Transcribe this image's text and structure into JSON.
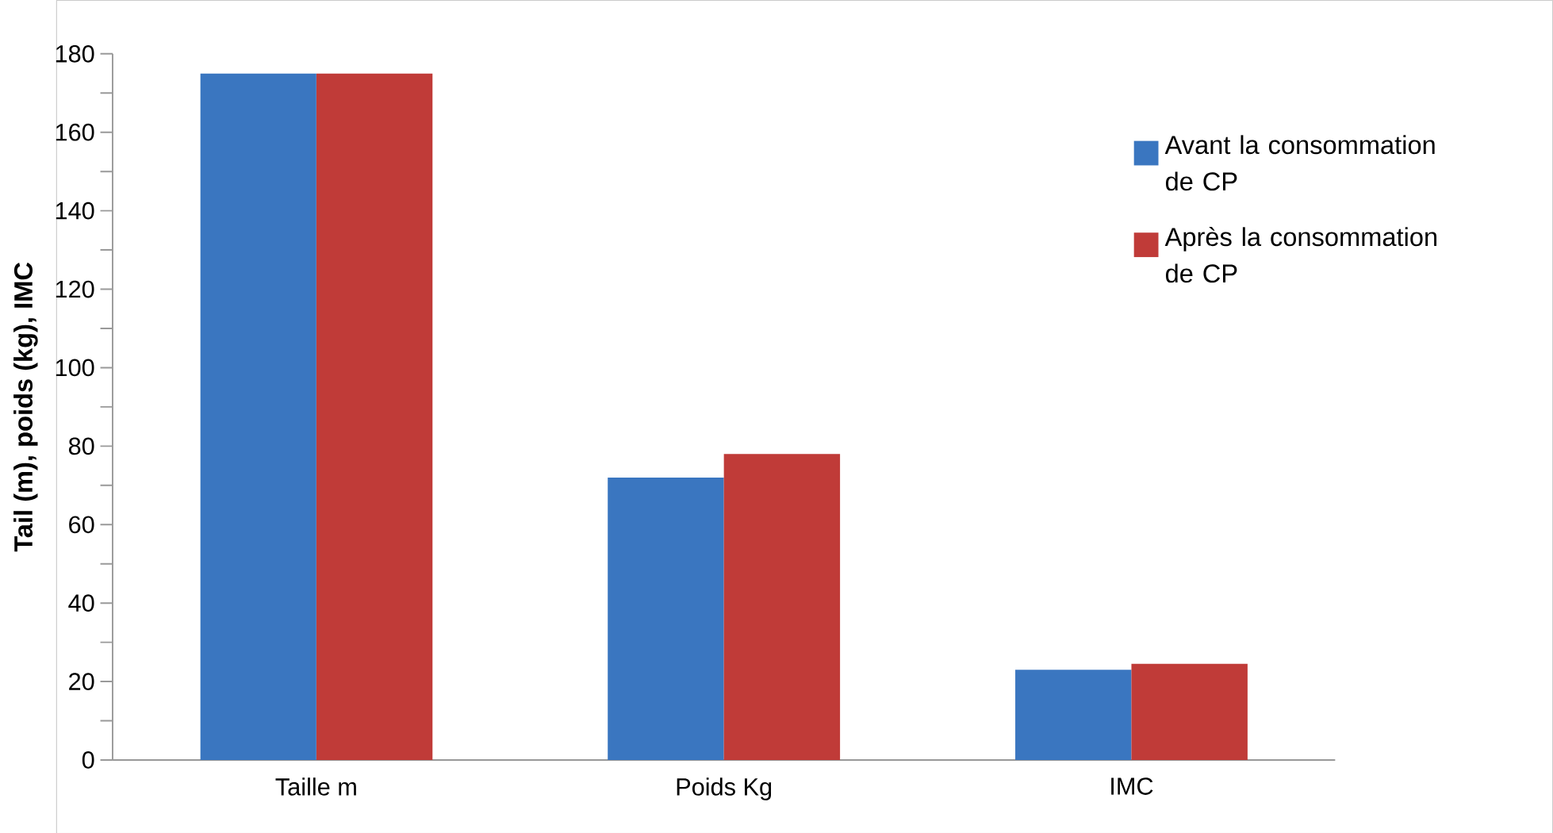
{
  "chart_data": {
    "type": "bar",
    "ylabel": "Tail (m), poids (kg), IMC",
    "categories": [
      "Taille m",
      "Poids Kg",
      "IMC"
    ],
    "series": [
      {
        "name": "Avant la consommation de CP",
        "color": "#3a76c0",
        "values": [
          175,
          72,
          23
        ]
      },
      {
        "name": "Après la consommation de CP",
        "color": "#c03b38",
        "values": [
          175,
          78,
          24.5
        ]
      }
    ],
    "ylim": [
      0,
      180
    ],
    "yticks": [
      0,
      20,
      40,
      60,
      80,
      100,
      120,
      140,
      160,
      180
    ],
    "legend": "top right"
  }
}
